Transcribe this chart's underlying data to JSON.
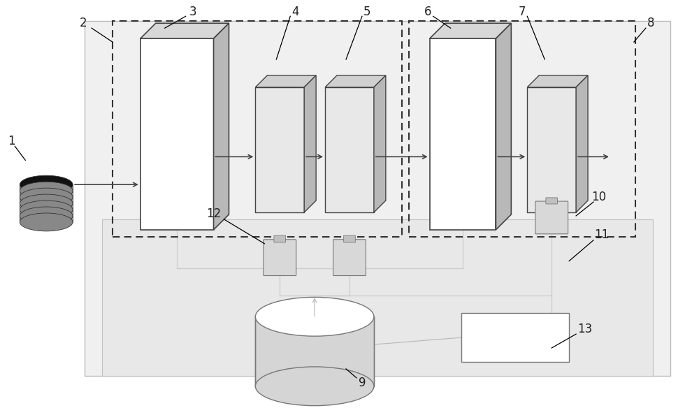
{
  "bg_color": "#ffffff",
  "fig_width": 10.0,
  "fig_height": 5.94,
  "dpi": 100,
  "label_fontsize": 12,
  "label_color": "#222222",
  "ec_dark": "#444444",
  "ec_mid": "#777777",
  "ec_light": "#aaaaaa"
}
